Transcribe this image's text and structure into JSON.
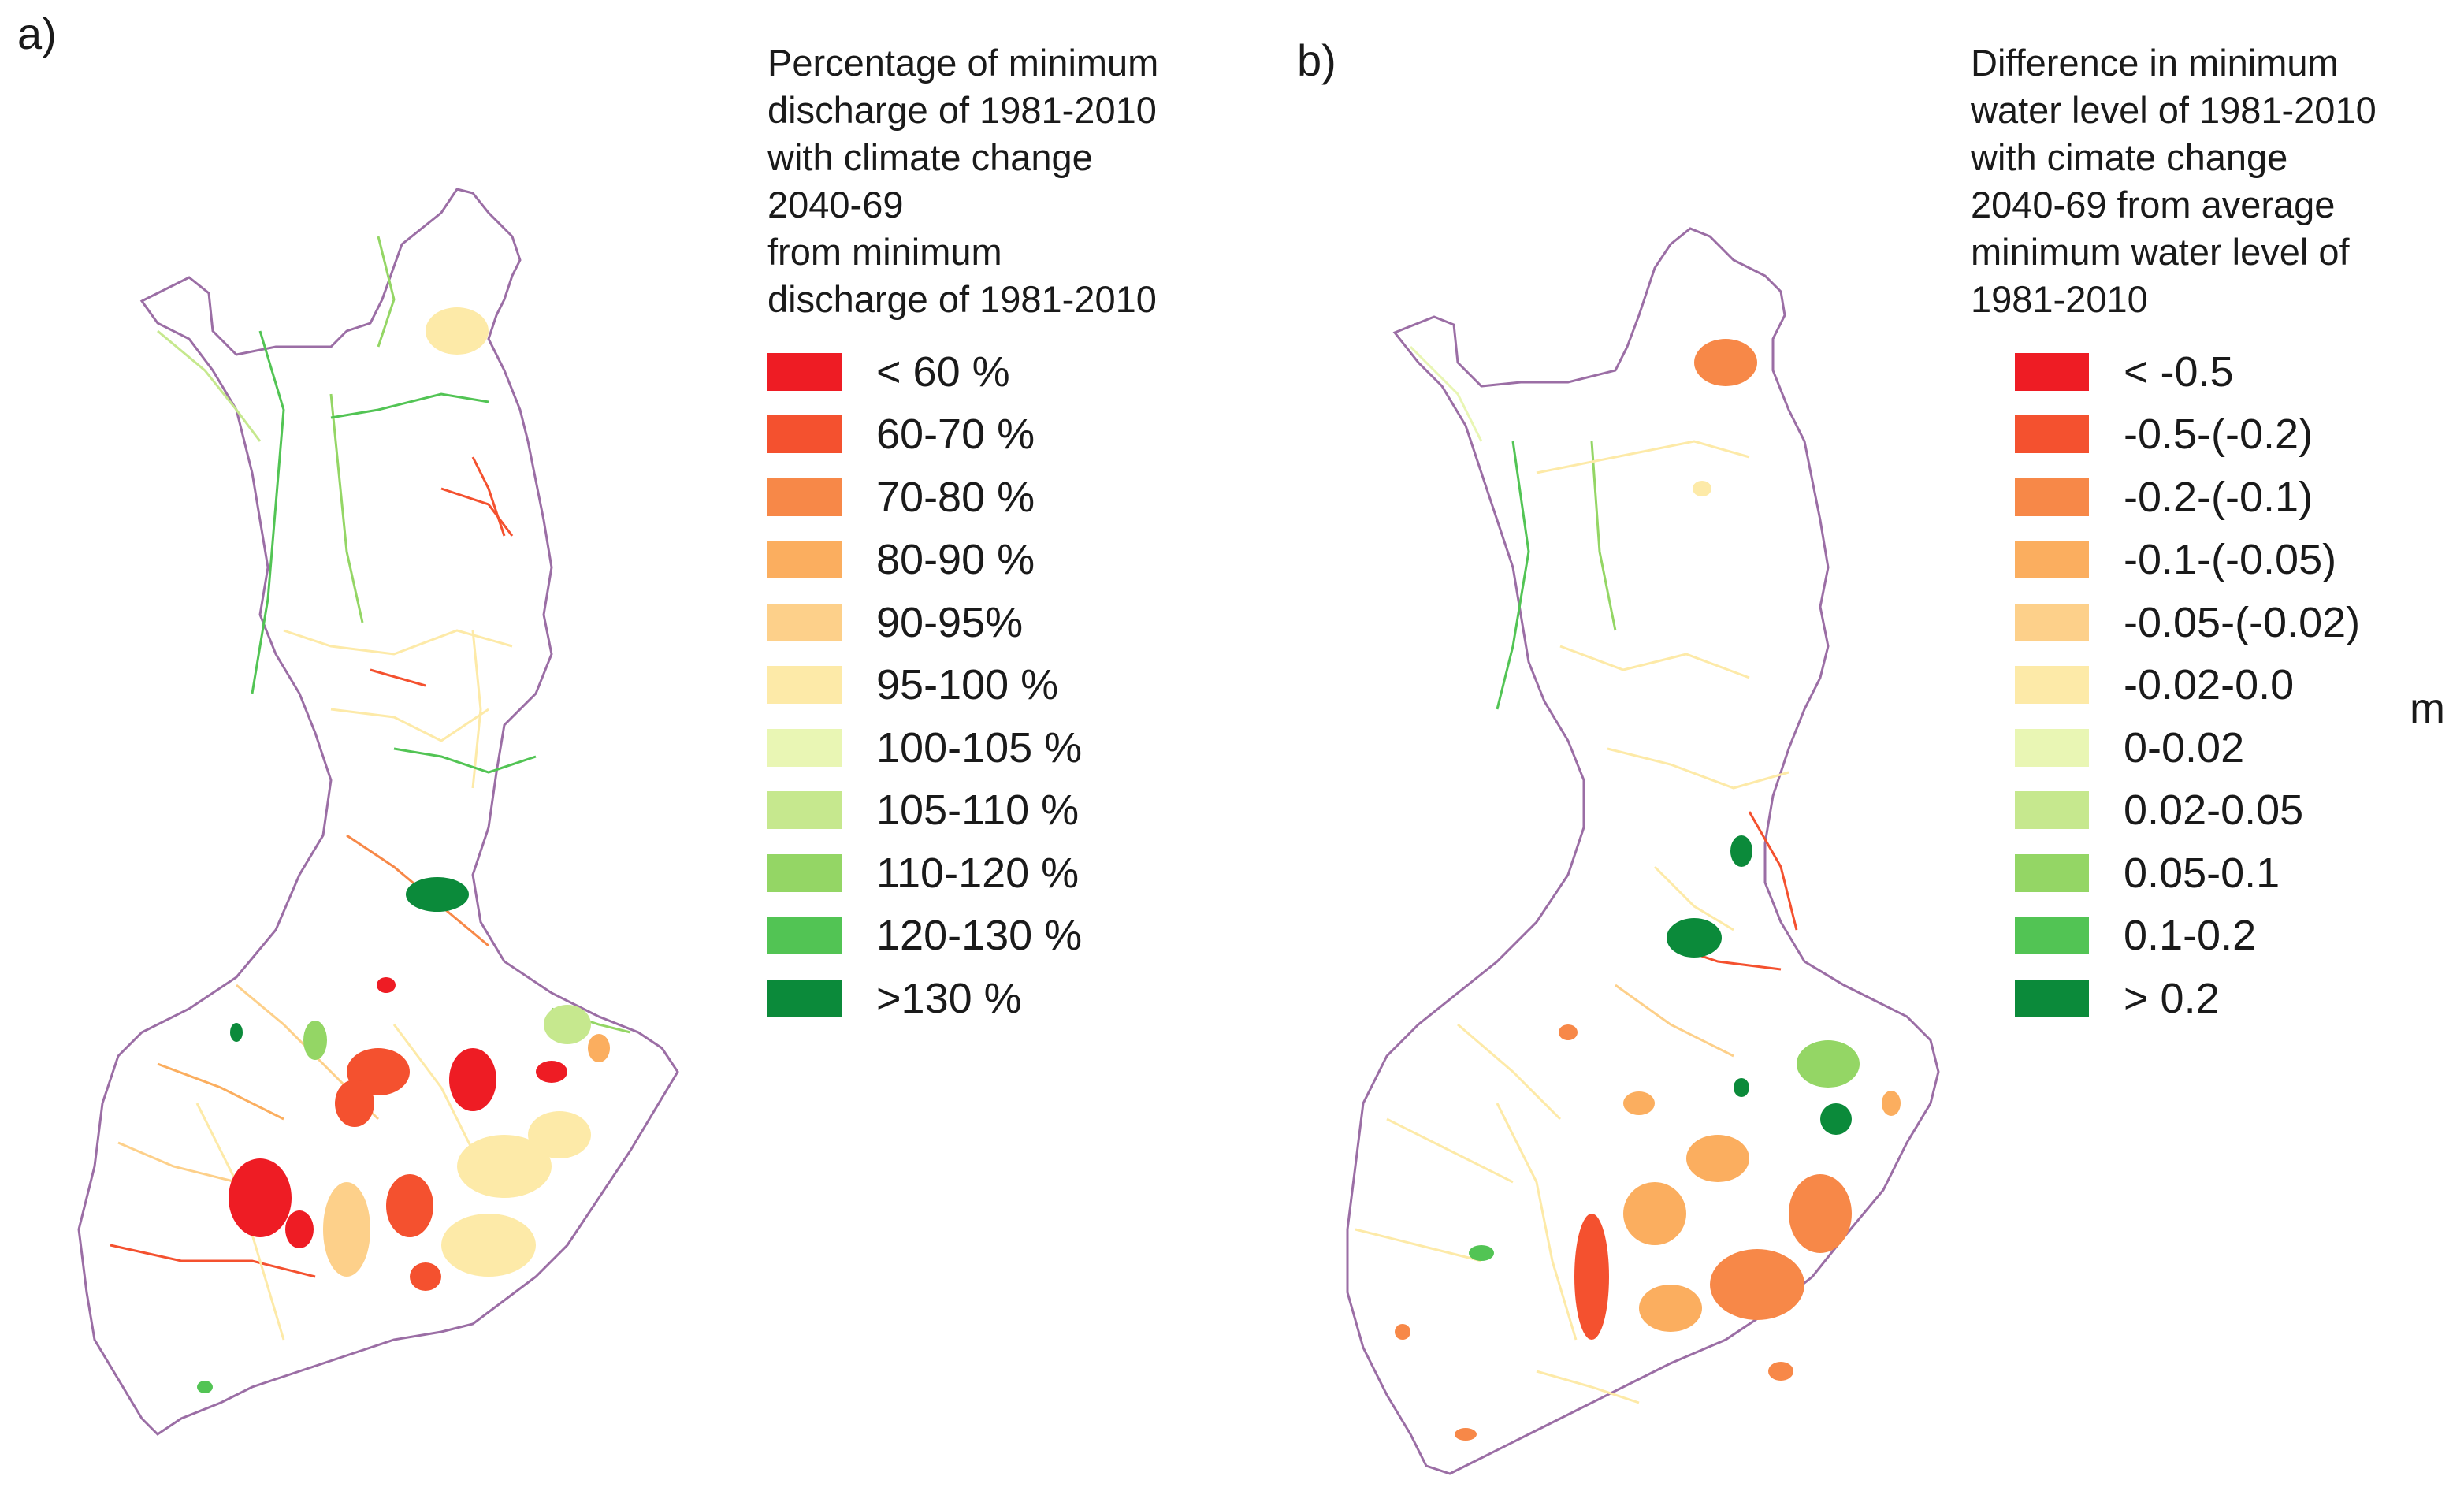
{
  "panels": [
    {
      "label": "a)",
      "legend_title": "Percentage of minimum\ndischarge of 1981-2010\nwith climate change\n2040-69\nfrom minimum\ndischarge of 1981-2010",
      "legend_items": [
        {
          "label": "< 60 %",
          "color": "#ee1c24"
        },
        {
          "label": "60-70 %",
          "color": "#f4512f"
        },
        {
          "label": "70-80 %",
          "color": "#f78848"
        },
        {
          "label": "80-90 %",
          "color": "#fbae5f"
        },
        {
          "label": "90-95%",
          "color": "#fdd08a"
        },
        {
          "label": "95-100 %",
          "color": "#fdeaa8"
        },
        {
          "label": "100-105 %",
          "color": "#e9f6b4"
        },
        {
          "label": "105-110 %",
          "color": "#c6e88e"
        },
        {
          "label": "110-120 %",
          "color": "#94d665"
        },
        {
          "label": "120-130 %",
          "color": "#52c454"
        },
        {
          "label": ">130 %",
          "color": "#0b8a3a"
        }
      ]
    },
    {
      "label": "b)",
      "legend_title": "Difference in minimum\nwater level of 1981-2010\nwith cimate change\n2040-69 from average\nminimum water level of\n1981-2010",
      "unit": "m",
      "legend_items": [
        {
          "label": "< -0.5",
          "color": "#ee1c24"
        },
        {
          "label": "-0.5-(-0.2)",
          "color": "#f4512f"
        },
        {
          "label": "-0.2-(-0.1)",
          "color": "#f78848"
        },
        {
          "label": "-0.1-(-0.05)",
          "color": "#fbae5f"
        },
        {
          "label": "-0.05-(-0.02)",
          "color": "#fdd08a"
        },
        {
          "label": "-0.02-0.0",
          "color": "#fdeaa8"
        },
        {
          "label": "0-0.02",
          "color": "#e9f6b4"
        },
        {
          "label": "0.02-0.05",
          "color": "#c6e88e"
        },
        {
          "label": "0.05-0.1",
          "color": "#94d665"
        },
        {
          "label": "0.1-0.2",
          "color": "#52c454"
        },
        {
          "label": "> 0.2",
          "color": "#0b8a3a"
        }
      ]
    }
  ],
  "map_style": {
    "border_color": "#9b6ea5",
    "land_color": "#ffffff"
  }
}
